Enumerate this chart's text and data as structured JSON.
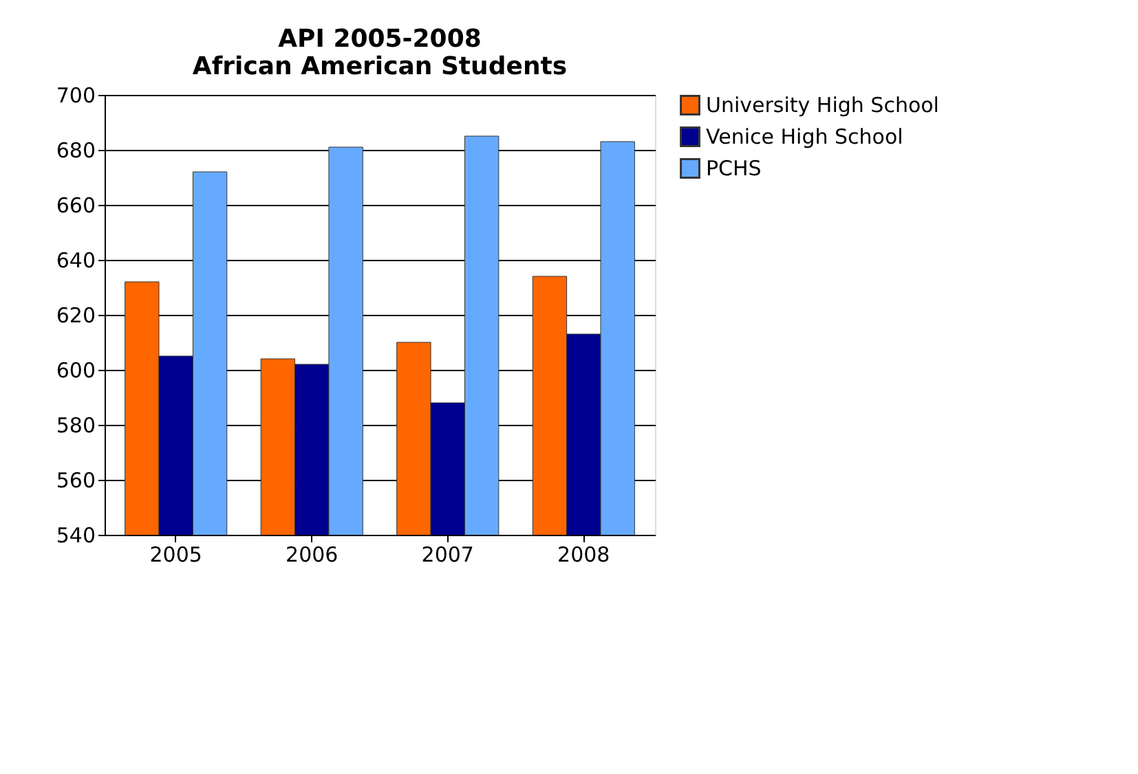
{
  "chart_data": {
    "type": "bar",
    "title": [
      "API 2005-2008",
      "African American Students"
    ],
    "categories": [
      "2005",
      "2006",
      "2007",
      "2008"
    ],
    "series": [
      {
        "name": "University High School",
        "color": "#ff6600",
        "values": [
          632,
          604,
          610,
          634
        ]
      },
      {
        "name": "Venice High School",
        "color": "#000090",
        "values": [
          605,
          602,
          588,
          613
        ]
      },
      {
        "name": "PCHS",
        "color": "#66aaff",
        "values": [
          672,
          681,
          685,
          683
        ]
      }
    ],
    "ylim": [
      540,
      700
    ],
    "yticks": [
      540,
      560,
      580,
      600,
      620,
      640,
      660,
      680,
      700
    ],
    "grid": "y",
    "legend": "right"
  }
}
